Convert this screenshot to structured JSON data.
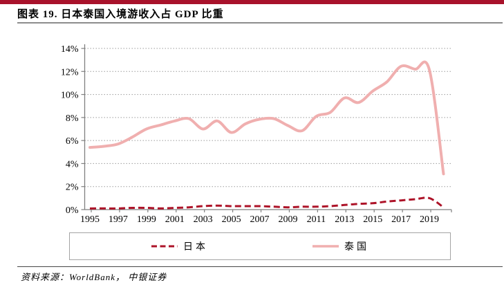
{
  "header": {
    "title": "图表 19. 日本泰国入境游收入占 GDP 比重"
  },
  "footer": {
    "source": "资料来源：WorldBank， 中银证券"
  },
  "colors": {
    "brand_bar": "#A8122B",
    "japan_line": "#AD1328",
    "thailand_line": "#F0AFAF",
    "axis": "#7f7f7f",
    "grid": "#9a9a9a",
    "legend_border": "#a3a3a3",
    "text": "#000000"
  },
  "chart_data": {
    "type": "line",
    "title": "图表 19. 日本泰国入境游收入占 GDP 比重",
    "x": [
      1995,
      1996,
      1997,
      1998,
      1999,
      2000,
      2001,
      2002,
      2003,
      2004,
      2005,
      2006,
      2007,
      2008,
      2009,
      2010,
      2011,
      2012,
      2013,
      2014,
      2015,
      2016,
      2017,
      2018,
      2019,
      2020
    ],
    "x_tick_labels": [
      "1995",
      "1997",
      "1999",
      "2001",
      "2003",
      "2005",
      "2007",
      "2009",
      "2011",
      "2013",
      "2015",
      "2017",
      "2019"
    ],
    "y_ticks": [
      0,
      2,
      4,
      6,
      8,
      10,
      12,
      14
    ],
    "y_tick_labels": [
      "0%",
      "2%",
      "4%",
      "6%",
      "8%",
      "10%",
      "12%",
      "14%"
    ],
    "ylim": [
      0,
      14
    ],
    "xlabel": "",
    "ylabel": "",
    "grid": "horizontal-dotted",
    "legend_position": "bottom-boxed",
    "series": [
      {
        "name": "日本",
        "style": "dashed",
        "color": "#AD1328",
        "values": [
          0.1,
          0.1,
          0.1,
          0.15,
          0.15,
          0.1,
          0.15,
          0.2,
          0.3,
          0.35,
          0.3,
          0.3,
          0.3,
          0.25,
          0.2,
          0.25,
          0.25,
          0.3,
          0.4,
          0.5,
          0.55,
          0.7,
          0.8,
          0.9,
          1.0,
          0.2
        ]
      },
      {
        "name": "泰国",
        "style": "solid",
        "color": "#F0AFAF",
        "values": [
          5.4,
          5.5,
          5.7,
          6.3,
          7.0,
          7.35,
          7.7,
          7.9,
          7.0,
          7.7,
          6.7,
          7.45,
          7.85,
          7.9,
          7.3,
          6.85,
          8.1,
          8.45,
          9.7,
          9.3,
          10.3,
          11.1,
          12.45,
          12.2,
          12.15,
          3.1
        ]
      }
    ]
  }
}
